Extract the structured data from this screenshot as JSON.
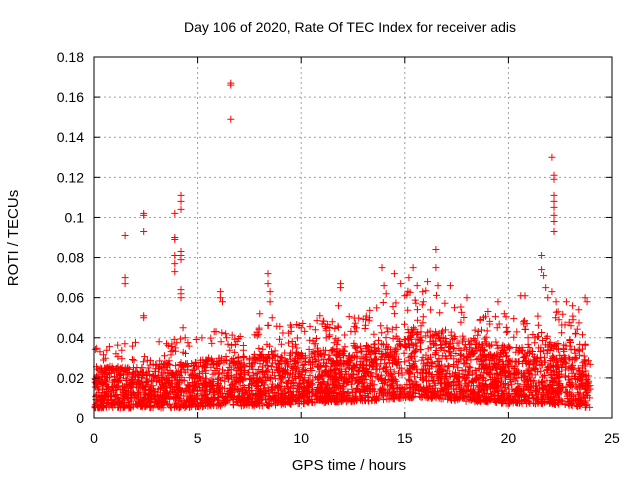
{
  "chart_data": {
    "type": "scatter",
    "title": "Day 106 of 2020, Rate Of TEC Index for receiver adis",
    "xlabel": "GPS time / hours",
    "ylabel": "ROTI / TECUs",
    "xlim": [
      0,
      25
    ],
    "ylim": [
      0,
      0.18
    ],
    "xticks": [
      0,
      5,
      10,
      15,
      20,
      25
    ],
    "xtick_labels": [
      "0",
      "5",
      "10",
      "15",
      "20",
      "25"
    ],
    "yticks": [
      0,
      0.02,
      0.04,
      0.06,
      0.08,
      0.1,
      0.12,
      0.14,
      0.16,
      0.18
    ],
    "ytick_labels": [
      "0",
      "0.02",
      "0.04",
      "0.06",
      "0.08",
      "0.1",
      "0.12",
      "0.14",
      "0.16",
      "0.18"
    ],
    "grid": true,
    "marker": "+",
    "color": "#ff0000",
    "baseline_envelope": {
      "hours": [
        0,
        2,
        4,
        6,
        8,
        10,
        12,
        13,
        14,
        15,
        16,
        17,
        18,
        19,
        20,
        21,
        22,
        23,
        24
      ],
      "typical_max": [
        0.025,
        0.026,
        0.028,
        0.03,
        0.032,
        0.033,
        0.035,
        0.036,
        0.04,
        0.045,
        0.045,
        0.042,
        0.04,
        0.038,
        0.036,
        0.034,
        0.038,
        0.036,
        0.03
      ],
      "typical_min": [
        0.005,
        0.005,
        0.005,
        0.006,
        0.006,
        0.007,
        0.008,
        0.008,
        0.009,
        0.01,
        0.01,
        0.009,
        0.008,
        0.008,
        0.007,
        0.007,
        0.007,
        0.006,
        0.005
      ]
    },
    "outliers": [
      {
        "x": 1.5,
        "y": 0.091
      },
      {
        "x": 1.5,
        "y": 0.07
      },
      {
        "x": 1.5,
        "y": 0.067
      },
      {
        "x": 2.4,
        "y": 0.102
      },
      {
        "x": 2.4,
        "y": 0.101
      },
      {
        "x": 2.4,
        "y": 0.093
      },
      {
        "x": 2.4,
        "y": 0.051
      },
      {
        "x": 2.4,
        "y": 0.05
      },
      {
        "x": 3.5,
        "y": 0.037
      },
      {
        "x": 3.9,
        "y": 0.102
      },
      {
        "x": 3.9,
        "y": 0.09
      },
      {
        "x": 3.9,
        "y": 0.089
      },
      {
        "x": 3.9,
        "y": 0.081
      },
      {
        "x": 3.9,
        "y": 0.077
      },
      {
        "x": 3.9,
        "y": 0.073
      },
      {
        "x": 4.2,
        "y": 0.111
      },
      {
        "x": 4.2,
        "y": 0.108
      },
      {
        "x": 4.2,
        "y": 0.104
      },
      {
        "x": 4.2,
        "y": 0.083
      },
      {
        "x": 4.2,
        "y": 0.081
      },
      {
        "x": 4.2,
        "y": 0.079
      },
      {
        "x": 4.2,
        "y": 0.064
      },
      {
        "x": 4.2,
        "y": 0.062
      },
      {
        "x": 4.2,
        "y": 0.06
      },
      {
        "x": 4.3,
        "y": 0.045
      },
      {
        "x": 4.4,
        "y": 0.04
      },
      {
        "x": 5.8,
        "y": 0.043
      },
      {
        "x": 6.1,
        "y": 0.063
      },
      {
        "x": 6.1,
        "y": 0.06
      },
      {
        "x": 6.2,
        "y": 0.058
      },
      {
        "x": 6.4,
        "y": 0.04
      },
      {
        "x": 6.6,
        "y": 0.167
      },
      {
        "x": 6.6,
        "y": 0.166
      },
      {
        "x": 6.6,
        "y": 0.149
      },
      {
        "x": 8.0,
        "y": 0.052
      },
      {
        "x": 8.4,
        "y": 0.072
      },
      {
        "x": 8.4,
        "y": 0.067
      },
      {
        "x": 8.5,
        "y": 0.063
      },
      {
        "x": 8.5,
        "y": 0.058
      },
      {
        "x": 8.6,
        "y": 0.05
      },
      {
        "x": 10.0,
        "y": 0.045
      },
      {
        "x": 10.9,
        "y": 0.051
      },
      {
        "x": 11.5,
        "y": 0.048
      },
      {
        "x": 11.9,
        "y": 0.067
      },
      {
        "x": 11.9,
        "y": 0.065
      },
      {
        "x": 11.8,
        "y": 0.056
      },
      {
        "x": 12.6,
        "y": 0.043
      },
      {
        "x": 13.3,
        "y": 0.05
      },
      {
        "x": 13.9,
        "y": 0.075
      },
      {
        "x": 14.0,
        "y": 0.066
      },
      {
        "x": 14.1,
        "y": 0.062
      },
      {
        "x": 14.5,
        "y": 0.072
      },
      {
        "x": 14.8,
        "y": 0.067
      },
      {
        "x": 15.0,
        "y": 0.061
      },
      {
        "x": 15.2,
        "y": 0.07
      },
      {
        "x": 15.4,
        "y": 0.075
      },
      {
        "x": 15.6,
        "y": 0.066
      },
      {
        "x": 15.9,
        "y": 0.058
      },
      {
        "x": 16.1,
        "y": 0.068
      },
      {
        "x": 16.5,
        "y": 0.084
      },
      {
        "x": 16.5,
        "y": 0.075
      },
      {
        "x": 16.6,
        "y": 0.066
      },
      {
        "x": 17.2,
        "y": 0.066
      },
      {
        "x": 17.4,
        "y": 0.055
      },
      {
        "x": 18.0,
        "y": 0.06
      },
      {
        "x": 18.8,
        "y": 0.05
      },
      {
        "x": 19.5,
        "y": 0.058
      },
      {
        "x": 19.8,
        "y": 0.052
      },
      {
        "x": 20.6,
        "y": 0.061
      },
      {
        "x": 20.8,
        "y": 0.061
      },
      {
        "x": 21.6,
        "y": 0.081
      },
      {
        "x": 21.6,
        "y": 0.074
      },
      {
        "x": 21.7,
        "y": 0.071
      },
      {
        "x": 21.8,
        "y": 0.065
      },
      {
        "x": 21.9,
        "y": 0.06
      },
      {
        "x": 22.1,
        "y": 0.13
      },
      {
        "x": 22.2,
        "y": 0.121
      },
      {
        "x": 22.2,
        "y": 0.119
      },
      {
        "x": 22.2,
        "y": 0.111
      },
      {
        "x": 22.2,
        "y": 0.108
      },
      {
        "x": 22.2,
        "y": 0.105
      },
      {
        "x": 22.2,
        "y": 0.101
      },
      {
        "x": 22.2,
        "y": 0.098
      },
      {
        "x": 22.2,
        "y": 0.093
      },
      {
        "x": 22.1,
        "y": 0.063
      },
      {
        "x": 22.3,
        "y": 0.058
      },
      {
        "x": 22.4,
        "y": 0.053
      },
      {
        "x": 22.8,
        "y": 0.058
      },
      {
        "x": 23.1,
        "y": 0.056
      },
      {
        "x": 23.4,
        "y": 0.054
      },
      {
        "x": 23.7,
        "y": 0.06
      },
      {
        "x": 23.8,
        "y": 0.058
      }
    ]
  }
}
